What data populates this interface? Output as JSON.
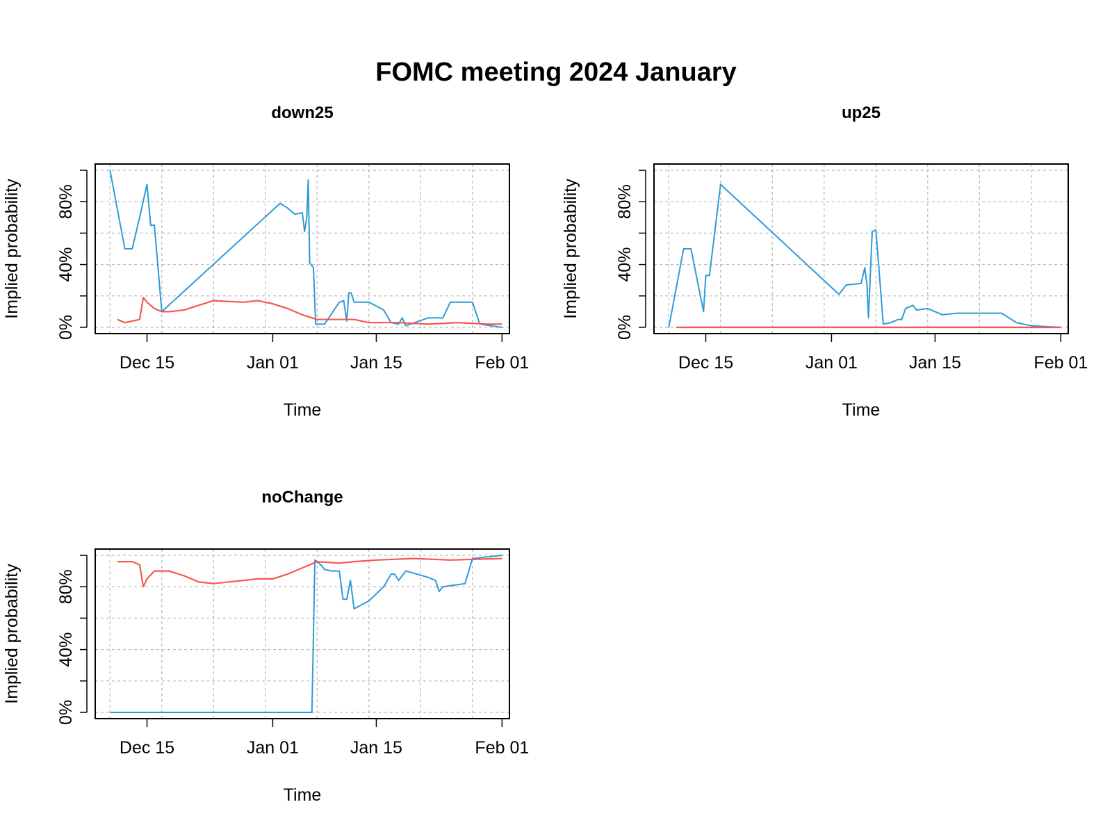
{
  "figure": {
    "title": "FOMC meeting 2024 January"
  },
  "colors": {
    "series_a": "#2E9BD6",
    "series_b": "#F8564E",
    "grid": "#BBBBBB",
    "axis": "#000000"
  },
  "chart_data": [
    {
      "type": "line",
      "title": "down25",
      "xlabel": "Time",
      "ylabel": "Implied probability",
      "xlim": [
        "2023-12-08",
        "2024-02-02"
      ],
      "ylim": [
        -4,
        104
      ],
      "x_ticks": [
        {
          "date": "2023-12-15",
          "label": "Dec 15"
        },
        {
          "date": "2024-01-01",
          "label": "Jan 01"
        },
        {
          "date": "2024-01-15",
          "label": "Jan 15"
        },
        {
          "date": "2024-02-01",
          "label": "Feb 01"
        }
      ],
      "y_ticks": [
        {
          "value": 0,
          "label": "0%"
        },
        {
          "value": 20,
          "label": ""
        },
        {
          "value": 40,
          "label": "40%"
        },
        {
          "value": 60,
          "label": ""
        },
        {
          "value": 80,
          "label": "80%"
        },
        {
          "value": 100,
          "label": ""
        }
      ],
      "grid": true,
      "series": [
        {
          "color": "#2E9BD6",
          "x": [
            "2023-12-10",
            "2023-12-12",
            "2023-12-13",
            "2023-12-14",
            "2023-12-15",
            "2023-12-15.5",
            "2023-12-16",
            "2023-12-17",
            "2024-01-02",
            "2024-01-03",
            "2024-01-04",
            "2024-01-05",
            "2024-01-05.3",
            "2024-01-05.6",
            "2024-01-05.8",
            "2024-01-06",
            "2024-01-06.5",
            "2024-01-06.8",
            "2024-01-08",
            "2024-01-10",
            "2024-01-10.6",
            "2024-01-11",
            "2024-01-11.3",
            "2024-01-11.6",
            "2024-01-12",
            "2024-01-14",
            "2024-01-16",
            "2024-01-17",
            "2024-01-18",
            "2024-01-18.5",
            "2024-01-19",
            "2024-01-22",
            "2024-01-24",
            "2024-01-25",
            "2024-01-28",
            "2024-01-29",
            "2024-02-01"
          ],
          "y": [
            100,
            50,
            50,
            70,
            91,
            65,
            65,
            10,
            79,
            76,
            72,
            73,
            61,
            70,
            94,
            41,
            38,
            2,
            2,
            16,
            17,
            4,
            22,
            22,
            16,
            16,
            11,
            3,
            2,
            6,
            1,
            6,
            6,
            16,
            16,
            2,
            0
          ]
        },
        {
          "color": "#F8564E",
          "x": [
            "2023-12-11",
            "2023-12-12",
            "2023-12-13",
            "2023-12-14",
            "2023-12-14.5",
            "2023-12-15",
            "2023-12-16",
            "2023-12-17",
            "2023-12-18",
            "2023-12-20",
            "2023-12-22",
            "2023-12-24",
            "2023-12-28",
            "2023-12-30",
            "2024-01-01",
            "2024-01-03",
            "2024-01-05",
            "2024-01-07",
            "2024-01-10",
            "2024-01-12",
            "2024-01-14",
            "2024-01-18",
            "2024-01-22",
            "2024-01-26",
            "2024-01-30",
            "2024-02-01"
          ],
          "y": [
            5,
            3,
            4,
            5,
            19,
            16,
            12,
            10,
            10,
            11,
            14,
            17,
            16,
            17,
            15,
            12,
            8,
            5,
            5,
            5,
            3,
            3,
            2,
            3,
            2,
            2
          ]
        }
      ]
    },
    {
      "type": "line",
      "title": "up25",
      "xlabel": "Time",
      "ylabel": "Implied probability",
      "xlim": [
        "2023-12-08",
        "2024-02-02"
      ],
      "ylim": [
        -4,
        104
      ],
      "x_ticks": [
        {
          "date": "2023-12-15",
          "label": "Dec 15"
        },
        {
          "date": "2024-01-01",
          "label": "Jan 01"
        },
        {
          "date": "2024-01-15",
          "label": "Jan 15"
        },
        {
          "date": "2024-02-01",
          "label": "Feb 01"
        }
      ],
      "y_ticks": [
        {
          "value": 0,
          "label": "0%"
        },
        {
          "value": 20,
          "label": ""
        },
        {
          "value": 40,
          "label": "40%"
        },
        {
          "value": 60,
          "label": ""
        },
        {
          "value": 80,
          "label": "80%"
        },
        {
          "value": 100,
          "label": ""
        }
      ],
      "grid": true,
      "series": [
        {
          "color": "#2E9BD6",
          "x": [
            "2023-12-10",
            "2023-12-12",
            "2023-12-13",
            "2023-12-14.7",
            "2023-12-15",
            "2023-12-15.5",
            "2023-12-17",
            "2024-01-02",
            "2024-01-03",
            "2024-01-05",
            "2024-01-05.5",
            "2024-01-05.8",
            "2024-01-06",
            "2024-01-06.5",
            "2024-01-07",
            "2024-01-08",
            "2024-01-09",
            "2024-01-10",
            "2024-01-10.5",
            "2024-01-11",
            "2024-01-12",
            "2024-01-12.5",
            "2024-01-14",
            "2024-01-16",
            "2024-01-18",
            "2024-01-20",
            "2024-01-22",
            "2024-01-24",
            "2024-01-26",
            "2024-01-28",
            "2024-02-01"
          ],
          "y": [
            0,
            50,
            50,
            10,
            33,
            33,
            91,
            21,
            27,
            28,
            38,
            27,
            6,
            61,
            62,
            2,
            3,
            5,
            5,
            12,
            14,
            11,
            12,
            8,
            9,
            9,
            9,
            9,
            3,
            1,
            0
          ]
        },
        {
          "color": "#F8564E",
          "x": [
            "2023-12-11",
            "2024-02-01"
          ],
          "y": [
            0,
            0
          ]
        }
      ]
    },
    {
      "type": "line",
      "title": "noChange",
      "xlabel": "Time",
      "ylabel": "Implied probability",
      "xlim": [
        "2023-12-08",
        "2024-02-02"
      ],
      "ylim": [
        -4,
        104
      ],
      "x_ticks": [
        {
          "date": "2023-12-15",
          "label": "Dec 15"
        },
        {
          "date": "2024-01-01",
          "label": "Jan 01"
        },
        {
          "date": "2024-01-15",
          "label": "Jan 15"
        },
        {
          "date": "2024-02-01",
          "label": "Feb 01"
        }
      ],
      "y_ticks": [
        {
          "value": 0,
          "label": "0%"
        },
        {
          "value": 20,
          "label": ""
        },
        {
          "value": 40,
          "label": "40%"
        },
        {
          "value": 60,
          "label": ""
        },
        {
          "value": 80,
          "label": "80%"
        },
        {
          "value": 100,
          "label": ""
        }
      ],
      "grid": true,
      "series": [
        {
          "color": "#2E9BD6",
          "x": [
            "2023-12-10",
            "2024-01-06.3",
            "2024-01-06.7",
            "2024-01-07.5",
            "2024-01-08",
            "2024-01-09",
            "2024-01-10",
            "2024-01-10.5",
            "2024-01-11",
            "2024-01-11.5",
            "2024-01-12",
            "2024-01-14",
            "2024-01-16",
            "2024-01-17",
            "2024-01-17.5",
            "2024-01-18",
            "2024-01-19",
            "2024-01-22",
            "2024-01-23",
            "2024-01-23.5",
            "2024-01-24",
            "2024-01-27",
            "2024-01-28",
            "2024-02-01"
          ],
          "y": [
            0,
            0,
            97,
            94,
            91,
            90,
            90,
            72,
            72,
            84,
            66,
            71,
            80,
            88,
            88,
            84,
            90,
            86,
            84,
            77,
            80,
            82,
            98,
            100
          ]
        },
        {
          "color": "#F8564E",
          "x": [
            "2023-12-11",
            "2023-12-13",
            "2023-12-14",
            "2023-12-14.5",
            "2023-12-15",
            "2023-12-16",
            "2023-12-18",
            "2023-12-20",
            "2023-12-22",
            "2023-12-24",
            "2023-12-28",
            "2023-12-30",
            "2024-01-01",
            "2024-01-03",
            "2024-01-05",
            "2024-01-07",
            "2024-01-10",
            "2024-01-12",
            "2024-01-15",
            "2024-01-20",
            "2024-01-25",
            "2024-02-01"
          ],
          "y": [
            96,
            96,
            94,
            80,
            85,
            90,
            90,
            87,
            83,
            82,
            84,
            85,
            85,
            88,
            92,
            96,
            95,
            96,
            97,
            98,
            97,
            98
          ]
        }
      ]
    }
  ]
}
